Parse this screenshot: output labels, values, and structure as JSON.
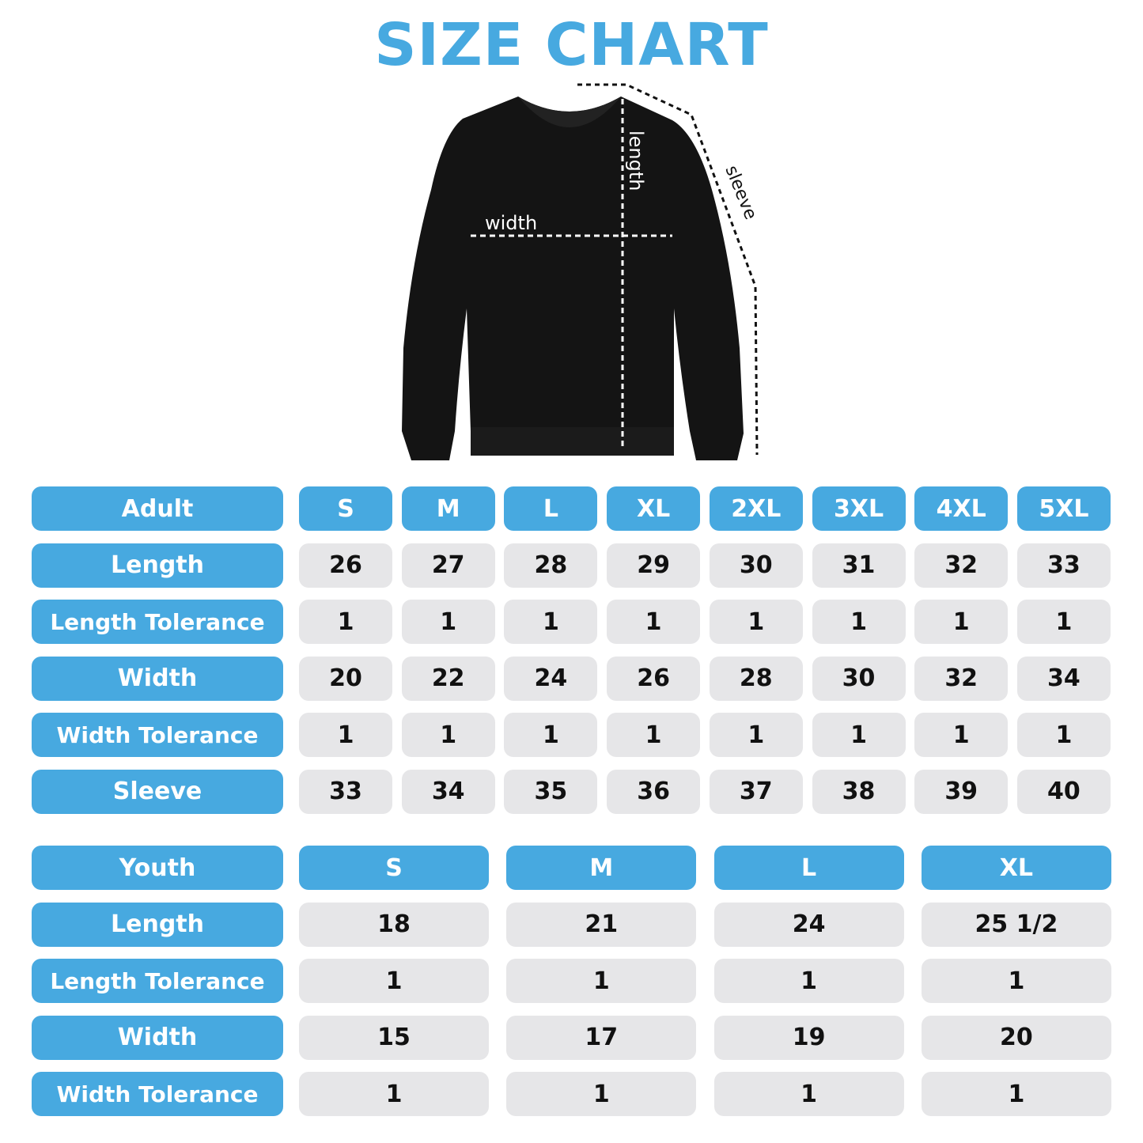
{
  "title": "SIZE CHART",
  "diagram_labels": {
    "width": "width",
    "length": "length",
    "sleeve": "sleeve"
  },
  "colors": {
    "accent": "#47a9e0",
    "cell": "#e6e6e8",
    "garment": "#141414"
  },
  "adult": {
    "header": "Adult",
    "sizes": [
      "S",
      "M",
      "L",
      "XL",
      "2XL",
      "3XL",
      "4XL",
      "5XL"
    ],
    "rows": [
      {
        "label": "Length",
        "values": [
          "26",
          "27",
          "28",
          "29",
          "30",
          "31",
          "32",
          "33"
        ]
      },
      {
        "label": "Length Tolerance",
        "values": [
          "1",
          "1",
          "1",
          "1",
          "1",
          "1",
          "1",
          "1"
        ]
      },
      {
        "label": "Width",
        "values": [
          "20",
          "22",
          "24",
          "26",
          "28",
          "30",
          "32",
          "34"
        ]
      },
      {
        "label": "Width Tolerance",
        "values": [
          "1",
          "1",
          "1",
          "1",
          "1",
          "1",
          "1",
          "1"
        ]
      },
      {
        "label": "Sleeve",
        "values": [
          "33",
          "34",
          "35",
          "36",
          "37",
          "38",
          "39",
          "40"
        ]
      }
    ]
  },
  "youth": {
    "header": "Youth",
    "sizes": [
      "S",
      "M",
      "L",
      "XL"
    ],
    "rows": [
      {
        "label": "Length",
        "values": [
          "18",
          "21",
          "24",
          "25 1/2"
        ]
      },
      {
        "label": "Length Tolerance",
        "values": [
          "1",
          "1",
          "1",
          "1"
        ]
      },
      {
        "label": "Width",
        "values": [
          "15",
          "17",
          "19",
          "20"
        ]
      },
      {
        "label": "Width Tolerance",
        "values": [
          "1",
          "1",
          "1",
          "1"
        ]
      }
    ]
  }
}
